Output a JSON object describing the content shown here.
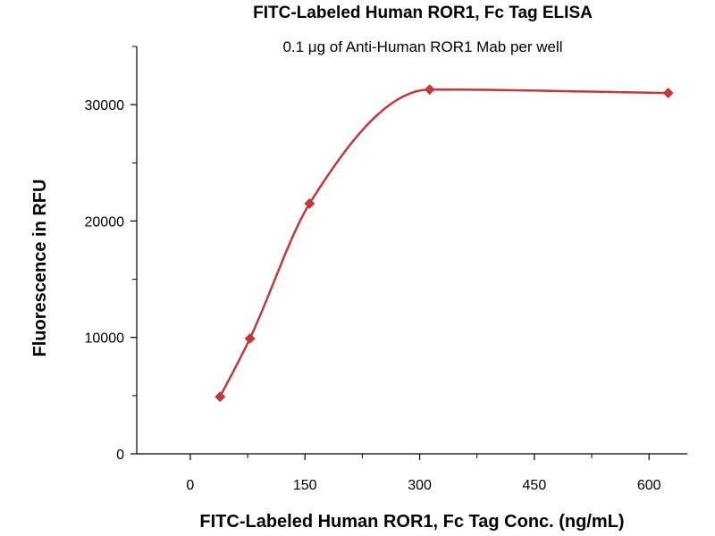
{
  "chart_data": {
    "type": "scatter",
    "title": "FITC-Labeled Human ROR1, Fc Tag ELISA",
    "subtitle": "0.1 μg of Anti-Human ROR1 Mab per well",
    "xlabel": "FITC-Labeled Human ROR1, Fc Tag Conc. (ng/mL)",
    "ylabel": "Fluorescence in RFU",
    "xlim": [
      -70,
      650
    ],
    "ylim": [
      0,
      35000
    ],
    "x_ticks": [
      0,
      150,
      300,
      450,
      600
    ],
    "y_ticks": [
      0,
      10000,
      20000,
      30000
    ],
    "x_tick_labels": [
      "0",
      "150",
      "300",
      "450",
      "600"
    ],
    "y_tick_labels": [
      "0",
      "10000",
      "20000",
      "30000"
    ],
    "grid": false,
    "color": "#C0393B",
    "series": [
      {
        "x": [
          39,
          78,
          156,
          313,
          625
        ],
        "y": [
          4900,
          9900,
          21500,
          31300,
          31000
        ]
      }
    ]
  }
}
